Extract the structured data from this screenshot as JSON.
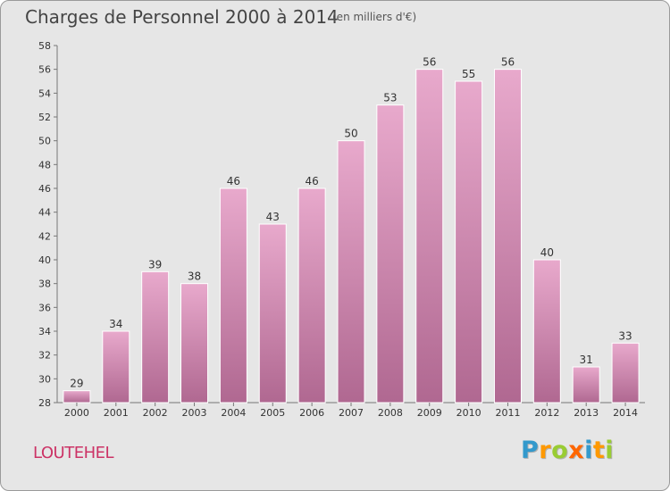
{
  "header": {
    "title": "Charges de Personnel 2000 à 2014",
    "subtitle": "(en milliers d'€)"
  },
  "footer": {
    "commune": "LOUTEHEL",
    "logo": {
      "letters": [
        "P",
        "r",
        "o",
        "x",
        "i",
        "t",
        "i"
      ],
      "colors": [
        "#3399cc",
        "#ff9900",
        "#99cc33",
        "#ff6600",
        "#3399cc",
        "#ff9900",
        "#99cc33"
      ]
    }
  },
  "chart_data": {
    "type": "bar",
    "categories": [
      "2000",
      "2001",
      "2002",
      "2003",
      "2004",
      "2005",
      "2006",
      "2007",
      "2008",
      "2009",
      "2010",
      "2011",
      "2012",
      "2013",
      "2014"
    ],
    "values": [
      29,
      34,
      39,
      38,
      46,
      43,
      46,
      50,
      53,
      56,
      55,
      56,
      40,
      31,
      33
    ],
    "ylim": [
      28,
      58
    ],
    "yticks": [
      28,
      30,
      32,
      34,
      36,
      38,
      40,
      42,
      44,
      46,
      48,
      50,
      52,
      54,
      56,
      58
    ],
    "grid": false,
    "data_labels": true,
    "bar_color": "#c8699a"
  }
}
